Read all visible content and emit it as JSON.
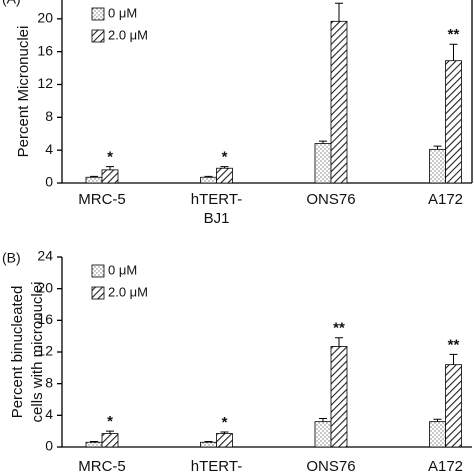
{
  "chart_data": [
    {
      "type": "bar",
      "panel_label": "(A)",
      "ylabel": [
        "Percent Micronuclei"
      ],
      "categories": [
        [
          "MRC-5"
        ],
        [
          "hTERT-",
          "BJ1"
        ],
        [
          "ONS76"
        ],
        [
          "A172"
        ]
      ],
      "series": [
        {
          "name": "0 μM",
          "color": "#999999",
          "pattern": "dots",
          "values": [
            0.7,
            0.7,
            4.8,
            4.1
          ],
          "errors": [
            0.1,
            0.1,
            0.3,
            0.4
          ]
        },
        {
          "name": "2.0 μM",
          "color": "#222222",
          "pattern": "hatch",
          "values": [
            1.6,
            1.8,
            19.7,
            14.9
          ],
          "errors": [
            0.4,
            0.2,
            2.2,
            2.0
          ]
        }
      ],
      "significance": [
        "*",
        "*",
        "**",
        "**"
      ],
      "ylim": [
        0,
        24
      ],
      "yticks": [
        0,
        4,
        8,
        12,
        16,
        20
      ]
    },
    {
      "type": "bar",
      "panel_label": "(B)",
      "ylabel": [
        "Percent binucleated",
        "cells with micronuclei"
      ],
      "categories": [
        [
          "MRC-5"
        ],
        [
          "hTERT-"
        ],
        [
          "ONS76"
        ],
        [
          "A172"
        ]
      ],
      "series": [
        {
          "name": "0 μM",
          "color": "#999999",
          "pattern": "dots",
          "values": [
            0.6,
            0.6,
            3.2,
            3.2
          ],
          "errors": [
            0.1,
            0.1,
            0.4,
            0.3
          ]
        },
        {
          "name": "2.0 μM",
          "color": "#222222",
          "pattern": "hatch",
          "values": [
            1.7,
            1.7,
            12.7,
            10.4
          ],
          "errors": [
            0.3,
            0.2,
            1.1,
            1.3
          ]
        }
      ],
      "significance": [
        "*",
        "*",
        "**",
        "**"
      ],
      "ylim": [
        0,
        24
      ],
      "yticks": [
        0,
        4,
        8,
        12,
        16,
        20,
        24
      ]
    }
  ]
}
